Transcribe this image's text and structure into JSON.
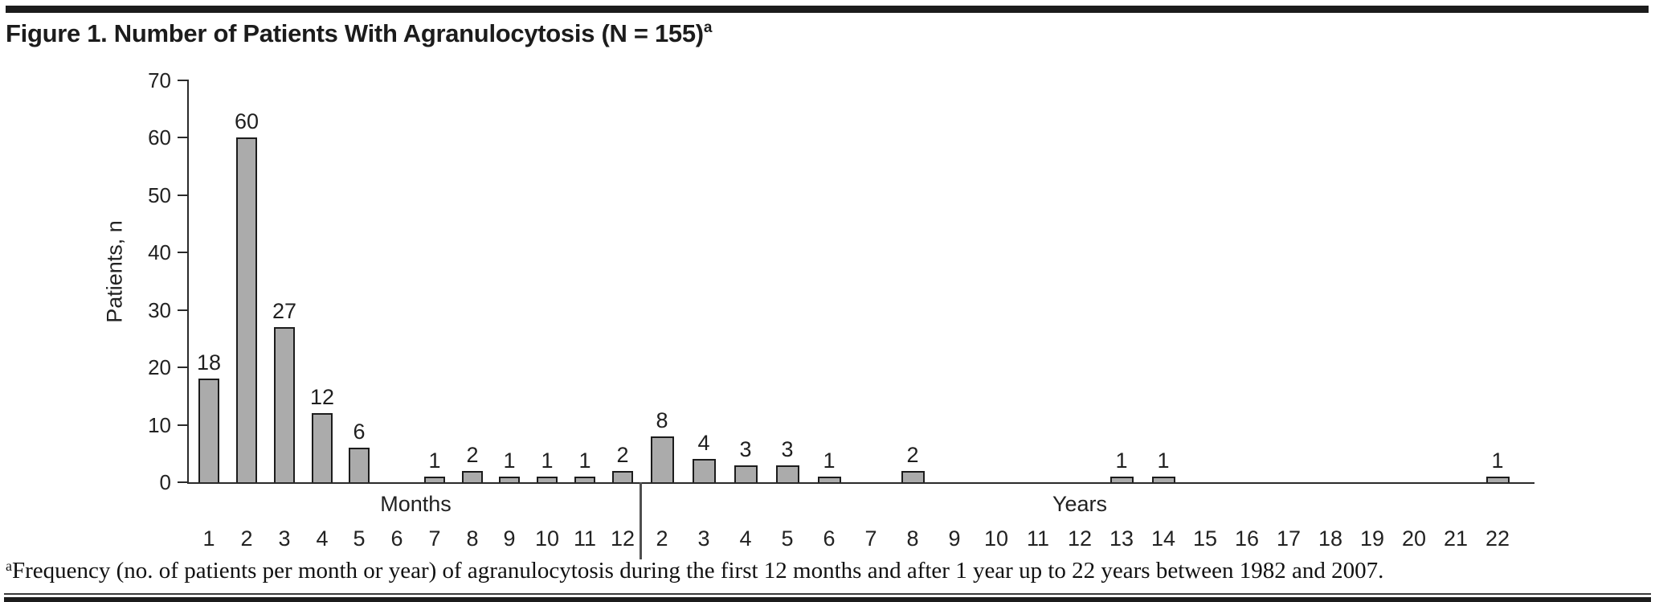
{
  "figure": {
    "title": "Figure 1. Number of Patients With Agranulocytosis (N = 155)",
    "title_superscript": "a",
    "footnote_superscript": "a",
    "footnote": "Frequency (no. of patients per month or year) of agranulocytosis during the first 12 months and after 1 year up to 22 years between 1982 and 2007."
  },
  "chart_data": {
    "type": "bar",
    "title": "Figure 1. Number of Patients With Agranulocytosis (N = 155)",
    "ylabel": "Patients, n",
    "ylim": [
      0,
      70
    ],
    "yticks": [
      0,
      10,
      20,
      30,
      40,
      50,
      60,
      70
    ],
    "grid": false,
    "legend": "none",
    "value_labels_shown": true,
    "bar_color": "#ababab",
    "bar_border_color": "#1c1c1c",
    "sections": [
      {
        "label": "Months",
        "categories": [
          "1",
          "2",
          "3",
          "4",
          "5",
          "6",
          "7",
          "8",
          "9",
          "10",
          "11",
          "12"
        ],
        "values": [
          18,
          60,
          27,
          12,
          6,
          0,
          1,
          2,
          1,
          1,
          1,
          2
        ]
      },
      {
        "label": "Years",
        "categories": [
          "2",
          "3",
          "4",
          "5",
          "6",
          "7",
          "8",
          "9",
          "10",
          "11",
          "12",
          "13",
          "14",
          "15",
          "16",
          "17",
          "18",
          "19",
          "20",
          "21",
          "22"
        ],
        "values": [
          8,
          4,
          3,
          3,
          1,
          0,
          2,
          0,
          0,
          0,
          0,
          1,
          1,
          0,
          0,
          0,
          0,
          0,
          0,
          0,
          1
        ]
      }
    ],
    "total_n": 155
  }
}
